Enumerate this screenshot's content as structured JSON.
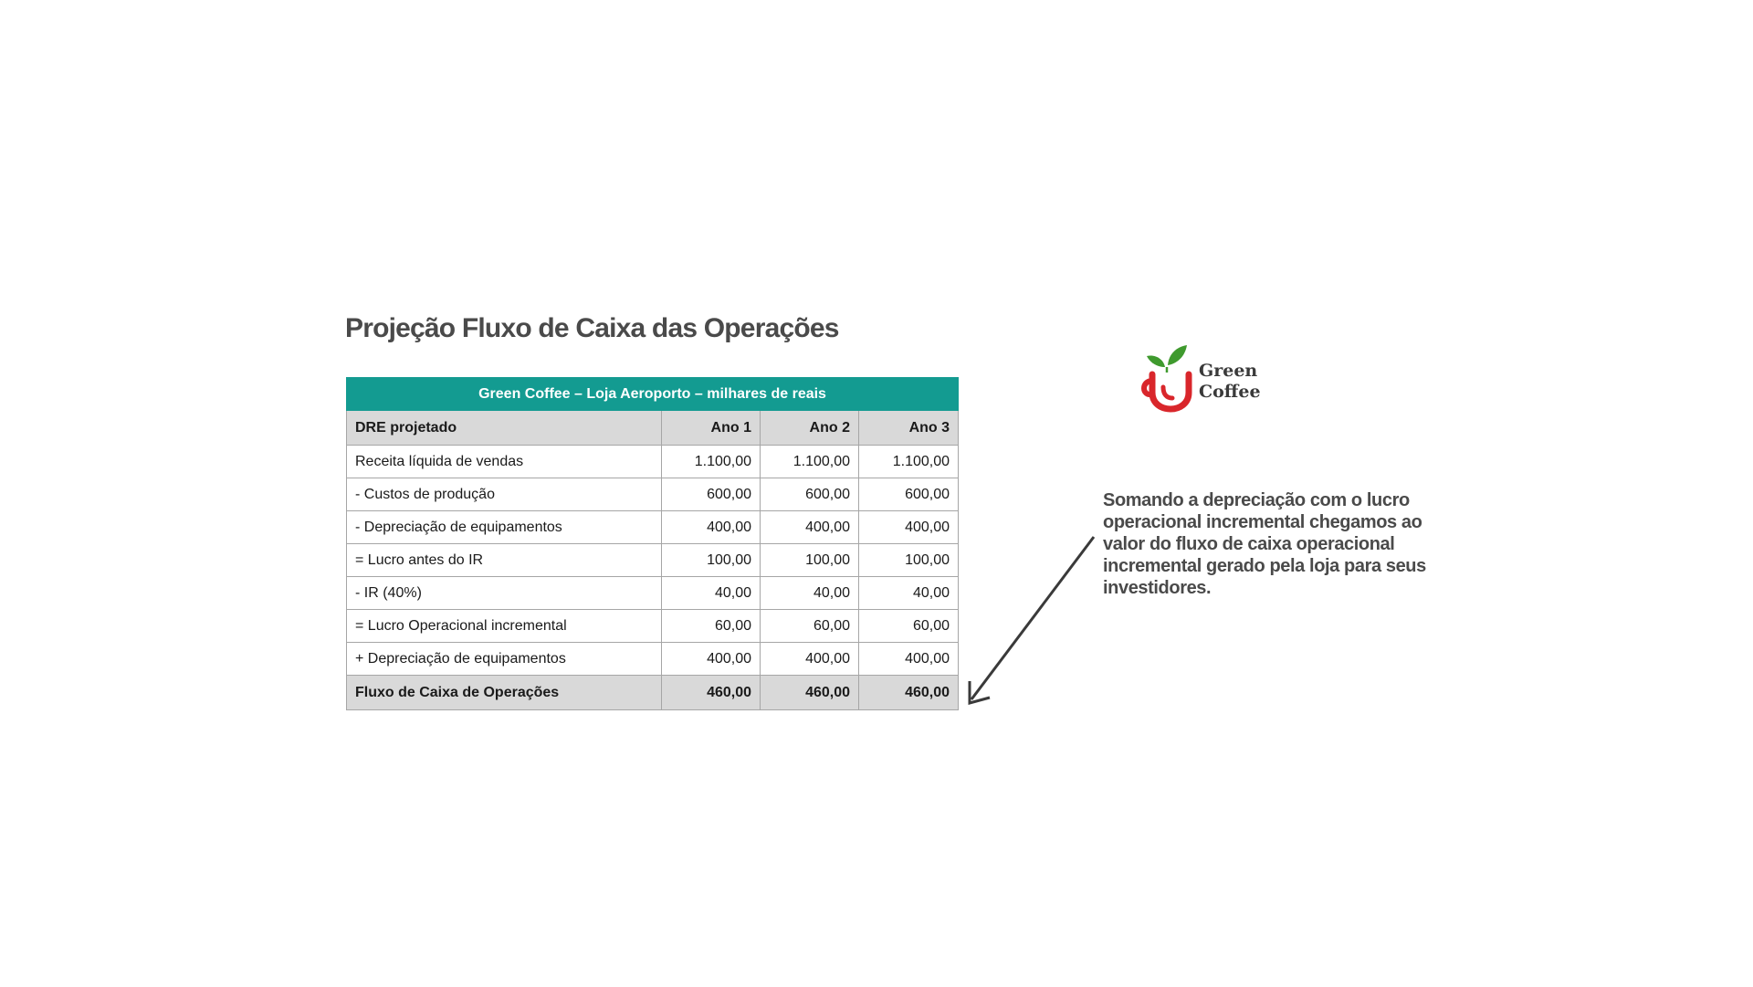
{
  "title": "Projeção Fluxo de Caixa das Operações",
  "table": {
    "caption": "Green Coffee – Loja Aeroporto – milhares de reais",
    "header": [
      "DRE projetado",
      "Ano 1",
      "Ano 2",
      "Ano 3"
    ],
    "rows": [
      {
        "label": "Receita líquida de vendas",
        "values": [
          "1.100,00",
          "1.100,00",
          "1.100,00"
        ]
      },
      {
        "label": "- Custos de produção",
        "values": [
          "600,00",
          "600,00",
          "600,00"
        ]
      },
      {
        "label": "- Depreciação de equipamentos",
        "values": [
          "400,00",
          "400,00",
          "400,00"
        ]
      },
      {
        "label": "= Lucro antes do IR",
        "values": [
          "100,00",
          "100,00",
          "100,00"
        ]
      },
      {
        "label": "- IR (40%)",
        "values": [
          "40,00",
          "40,00",
          "40,00"
        ]
      },
      {
        "label": "= Lucro Operacional incremental",
        "values": [
          "60,00",
          "60,00",
          "60,00"
        ]
      },
      {
        "label": "+ Depreciação de equipamentos",
        "values": [
          "400,00",
          "400,00",
          "400,00"
        ]
      }
    ],
    "total": {
      "label": "Fluxo de Caixa de Operações",
      "values": [
        "460,00",
        "460,00",
        "460,00"
      ]
    }
  },
  "logo": {
    "line1": "Green",
    "line2": "Coffee",
    "icon": "coffee-cup-leaf-icon",
    "cup_color": "#d9262b",
    "leaf_color": "#3f9a2e"
  },
  "note": "Somando a depreciação com o lucro operacional incremental chegamos ao valor do fluxo de caixa operacional incremental gerado pela loja para seus investidores.",
  "colors": {
    "caption_bg": "#139b91",
    "header_bg": "#d9d9d9",
    "title": "#4a4a4a"
  }
}
